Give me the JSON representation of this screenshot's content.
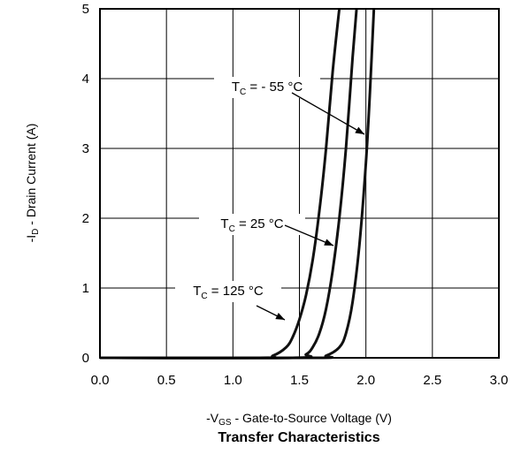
{
  "chart_data": {
    "type": "line",
    "title": "Transfer Characteristics",
    "xlabel": {
      "prefix": "-V",
      "sub": "GS",
      "rest": " - Gate-to-Source Voltage (V)"
    },
    "ylabel": {
      "prefix": "-I",
      "sub": "D",
      "rest": " - Drain Current (A)"
    },
    "xlim": [
      0,
      3
    ],
    "ylim": [
      0,
      5
    ],
    "xticks": [
      "0.0",
      "0.5",
      "1.0",
      "1.5",
      "2.0",
      "2.5",
      "3.0"
    ],
    "yticks": [
      "0",
      "1",
      "2",
      "3",
      "4",
      "5"
    ],
    "grid": true,
    "legend": "none",
    "series": [
      {
        "key": "t125",
        "label": {
          "prefix": "T",
          "sub": "C",
          "rest": " = 125 °C"
        },
        "x": [
          1.2,
          1.3,
          1.4,
          1.45,
          1.5,
          1.55,
          1.6,
          1.65,
          1.7,
          1.75,
          1.8
        ],
        "y": [
          0.0,
          0.03,
          0.15,
          0.3,
          0.55,
          0.9,
          1.4,
          2.1,
          3.0,
          4.1,
          5.0
        ]
      },
      {
        "key": "t25",
        "label": {
          "prefix": "T",
          "sub": "C",
          "rest": " = 25 °C"
        },
        "x": [
          1.45,
          1.55,
          1.6,
          1.65,
          1.7,
          1.75,
          1.8,
          1.85,
          1.9,
          1.93
        ],
        "y": [
          0.0,
          0.05,
          0.15,
          0.35,
          0.7,
          1.25,
          2.0,
          3.0,
          4.3,
          5.0
        ]
      },
      {
        "key": "tm55",
        "label": {
          "prefix": "T",
          "sub": "C",
          "rest": " = - 55 °C"
        },
        "x": [
          1.6,
          1.7,
          1.8,
          1.85,
          1.9,
          1.95,
          2.0,
          2.03,
          2.06
        ],
        "y": [
          0.0,
          0.03,
          0.15,
          0.35,
          0.8,
          1.6,
          2.8,
          3.8,
          5.0
        ]
      }
    ]
  }
}
